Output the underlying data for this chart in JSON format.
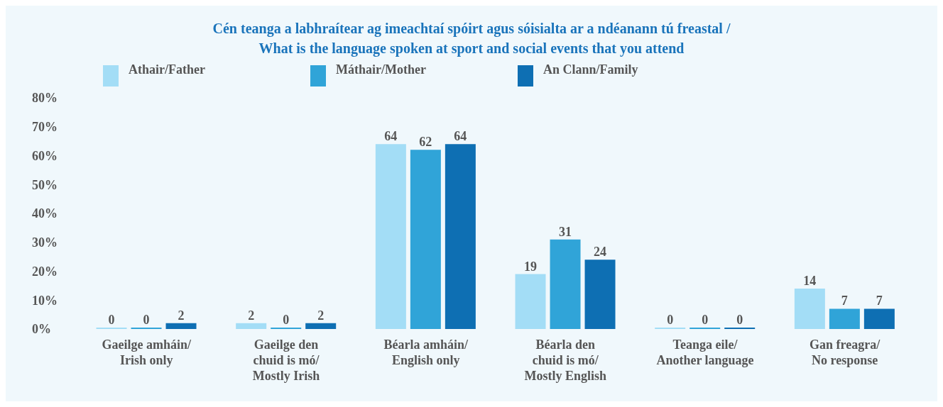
{
  "chart_data": {
    "type": "bar",
    "title": "Cén teanga a labhraítear ag imeachtaí spóirt agus sóisialta ar a ndéanann tú freastal /\nWhat is the language spoken at sport and social events that you attend",
    "categories": [
      "Gaeilge amháin/\nIrish only",
      "Gaeilge den\nchuid is mó/\nMostly Irish",
      "Béarla amháin/\nEnglish only",
      "Béarla den\nchuid is mó/\nMostly English",
      "Teanga eile/\nAnother language",
      "Gan freagra/\nNo response"
    ],
    "series": [
      {
        "name": "Athair/Father",
        "color": "#a3ddf6",
        "values": [
          0,
          2,
          64,
          19,
          0,
          14
        ]
      },
      {
        "name": "Máthair/Mother",
        "color": "#30a4d8",
        "values": [
          0,
          0,
          62,
          31,
          0,
          7
        ]
      },
      {
        "name": "An Clann/Family",
        "color": "#0e6fb3",
        "values": [
          2,
          2,
          64,
          24,
          0,
          7
        ]
      }
    ],
    "ylim": [
      0,
      80
    ],
    "yticks": [
      {
        "value": 0,
        "label": "0%"
      },
      {
        "value": 10,
        "label": "10%"
      },
      {
        "value": 20,
        "label": "20%"
      },
      {
        "value": 30,
        "label": "30%"
      },
      {
        "value": 40,
        "label": "40%"
      },
      {
        "value": 50,
        "label": "50%"
      },
      {
        "value": 60,
        "label": "60%"
      },
      {
        "value": 70,
        "label": "70%"
      },
      {
        "value": 80,
        "label": "80%"
      }
    ],
    "data_labels": true,
    "legend": "top",
    "grid": false
  }
}
